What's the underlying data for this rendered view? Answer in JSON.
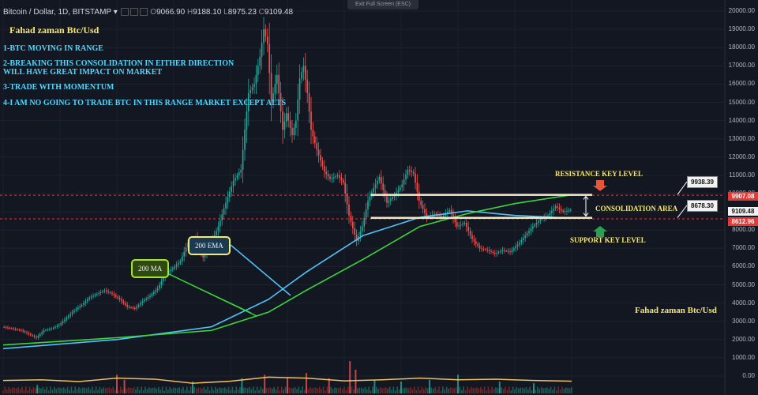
{
  "header": {
    "symbol": "Bitcoin / Dollar, 1D, BITSTAMP",
    "dropdown_caret": "▾",
    "o_label": "O",
    "o_value": "9066.90",
    "h_label": "H",
    "h_value": "9188.10",
    "l_label": "L",
    "l_value": "8975.23",
    "c_label": "C",
    "c_value": "9109.48",
    "fullscreen_tip": "Exit Full Screen (ESC)"
  },
  "annotations": {
    "title_top": "Fahad zaman Btc/Usd",
    "title_bottom": "Fahad zaman Btc/Usd",
    "note1": "1-BTC MOVING IN RANGE",
    "note2a": "2-BREAKING THIS CONSOLIDATION IN EITHER DIRECTION",
    "note2b": "WILL HAVE GREAT IMPACT ON MARKET",
    "note3": "3-TRADE WITH MOMENTUM",
    "note4": "4-I AM NO GOING TO TRADE  BTC IN THIS RANGE MARKET EXCEPT ALTS",
    "resistance_label": "RESISTANCE KEY LEVEL",
    "consolidation_label": "CONSOLIDATION AREA",
    "support_label": "SUPPORT KEY LEVEL",
    "ema_tag": "200 EMA",
    "ma_tag": "200 MA",
    "resistance_box": "9938.39",
    "support_box": "8678.30"
  },
  "price_labels": {
    "resistance": "9907.08",
    "current": "9109.48",
    "support": "8612.96"
  },
  "colors": {
    "background": "#131722",
    "up": "#26a69a",
    "down": "#ef5350",
    "ema": "#4fc3f7",
    "ma": "#3cd63c",
    "volume_ma": "#f0c060",
    "level_line": "#e53935"
  },
  "chart_data": {
    "type": "candlestick",
    "title": "Bitcoin / Dollar, 1D, BITSTAMP",
    "y_axis": {
      "side": "right",
      "range": [
        0,
        20000
      ],
      "ticks": [
        "20000.00",
        "19000.00",
        "18000.00",
        "17000.00",
        "16000.00",
        "15000.00",
        "14000.00",
        "13000.00",
        "12000.00",
        "11000.00",
        "10000.00",
        "9000.00",
        "8000.00",
        "7000.00",
        "6000.00",
        "5000.00",
        "4000.00",
        "3000.00",
        "2000.00",
        "1000.00",
        "0.00"
      ]
    },
    "last_ohlc": {
      "open": 9066.9,
      "high": 9188.1,
      "low": 8975.23,
      "close": 9109.48
    },
    "horizontal_levels": [
      {
        "name": "resistance",
        "value": 9907.08
      },
      {
        "name": "support",
        "value": 8612.96
      }
    ],
    "range_box": {
      "top": 9938.39,
      "bottom": 8678.3
    },
    "price_path": [
      [
        0,
        2700
      ],
      [
        5,
        2600
      ],
      [
        10,
        2500
      ],
      [
        14,
        2300
      ],
      [
        18,
        2100
      ],
      [
        22,
        2500
      ],
      [
        26,
        2600
      ],
      [
        30,
        2800
      ],
      [
        34,
        3200
      ],
      [
        38,
        3600
      ],
      [
        42,
        3900
      ],
      [
        46,
        4300
      ],
      [
        50,
        4500
      ],
      [
        54,
        4700
      ],
      [
        58,
        4500
      ],
      [
        62,
        4200
      ],
      [
        66,
        3800
      ],
      [
        70,
        3700
      ],
      [
        74,
        4100
      ],
      [
        78,
        4400
      ],
      [
        82,
        4800
      ],
      [
        86,
        5600
      ],
      [
        90,
        5900
      ],
      [
        94,
        6300
      ],
      [
        98,
        7300
      ],
      [
        102,
        7600
      ],
      [
        106,
        6500
      ],
      [
        110,
        7200
      ],
      [
        114,
        8200
      ],
      [
        118,
        9500
      ],
      [
        122,
        10700
      ],
      [
        126,
        11300
      ],
      [
        128,
        13500
      ],
      [
        130,
        15500
      ],
      [
        133,
        16000
      ],
      [
        136,
        17500
      ],
      [
        138,
        19000
      ],
      [
        140,
        18200
      ],
      [
        142,
        15000
      ],
      [
        145,
        16500
      ],
      [
        148,
        13500
      ],
      [
        150,
        14400
      ],
      [
        153,
        13200
      ],
      [
        155,
        14000
      ],
      [
        157,
        16300
      ],
      [
        159,
        17000
      ],
      [
        161,
        15500
      ],
      [
        163,
        13500
      ],
      [
        166,
        12400
      ],
      [
        170,
        11200
      ],
      [
        173,
        10800
      ],
      [
        177,
        11000
      ],
      [
        180,
        10600
      ],
      [
        183,
        8800
      ],
      [
        187,
        7400
      ],
      [
        190,
        8200
      ],
      [
        193,
        9600
      ],
      [
        196,
        10300
      ],
      [
        199,
        10900
      ],
      [
        203,
        9500
      ],
      [
        207,
        9900
      ],
      [
        211,
        10500
      ],
      [
        214,
        11300
      ],
      [
        217,
        11100
      ],
      [
        220,
        9600
      ],
      [
        224,
        8700
      ],
      [
        228,
        8900
      ],
      [
        232,
        8700
      ],
      [
        236,
        9100
      ],
      [
        240,
        8200
      ],
      [
        244,
        8400
      ],
      [
        248,
        7500
      ],
      [
        252,
        7000
      ],
      [
        256,
        6900
      ],
      [
        260,
        6700
      ],
      [
        264,
        6900
      ],
      [
        268,
        6800
      ],
      [
        272,
        7200
      ],
      [
        276,
        7700
      ],
      [
        280,
        8200
      ],
      [
        284,
        8600
      ],
      [
        288,
        8800
      ],
      [
        292,
        9300
      ],
      [
        296,
        9000
      ],
      [
        300,
        9109.48
      ]
    ],
    "series": [
      {
        "name": "200 EMA",
        "values": [
          [
            0,
            1500
          ],
          [
            60,
            2000
          ],
          [
            110,
            2700
          ],
          [
            140,
            4200
          ],
          [
            160,
            5700
          ],
          [
            190,
            7700
          ],
          [
            220,
            8700
          ],
          [
            245,
            9050
          ],
          [
            270,
            8800
          ],
          [
            300,
            8650
          ]
        ]
      },
      {
        "name": "200 MA",
        "values": [
          [
            0,
            1700
          ],
          [
            60,
            2100
          ],
          [
            110,
            2500
          ],
          [
            140,
            3500
          ],
          [
            160,
            4700
          ],
          [
            190,
            6400
          ],
          [
            220,
            8200
          ],
          [
            245,
            8900
          ],
          [
            270,
            9450
          ],
          [
            300,
            9930
          ]
        ]
      }
    ],
    "volume": {
      "ylim": [
        0,
        1
      ],
      "moving_average": [
        [
          0,
          0.38
        ],
        [
          20,
          0.4
        ],
        [
          40,
          0.35
        ],
        [
          60,
          0.45
        ],
        [
          80,
          0.42
        ],
        [
          100,
          0.3
        ],
        [
          120,
          0.36
        ],
        [
          140,
          0.48
        ],
        [
          160,
          0.45
        ],
        [
          180,
          0.37
        ],
        [
          200,
          0.4
        ],
        [
          220,
          0.45
        ],
        [
          240,
          0.4
        ],
        [
          260,
          0.42
        ],
        [
          280,
          0.38
        ],
        [
          300,
          0.36
        ]
      ],
      "bars": [
        [
          18,
          0.25
        ],
        [
          60,
          0.55
        ],
        [
          64,
          0.4
        ],
        [
          100,
          0.35
        ],
        [
          126,
          0.45
        ],
        [
          138,
          0.55
        ],
        [
          150,
          0.45
        ],
        [
          160,
          0.6
        ],
        [
          172,
          0.45
        ],
        [
          183,
          0.95
        ],
        [
          186,
          0.7
        ],
        [
          196,
          0.4
        ],
        [
          210,
          0.35
        ],
        [
          225,
          0.4
        ],
        [
          240,
          0.55
        ],
        [
          262,
          0.35
        ],
        [
          280,
          0.3
        ]
      ]
    }
  }
}
